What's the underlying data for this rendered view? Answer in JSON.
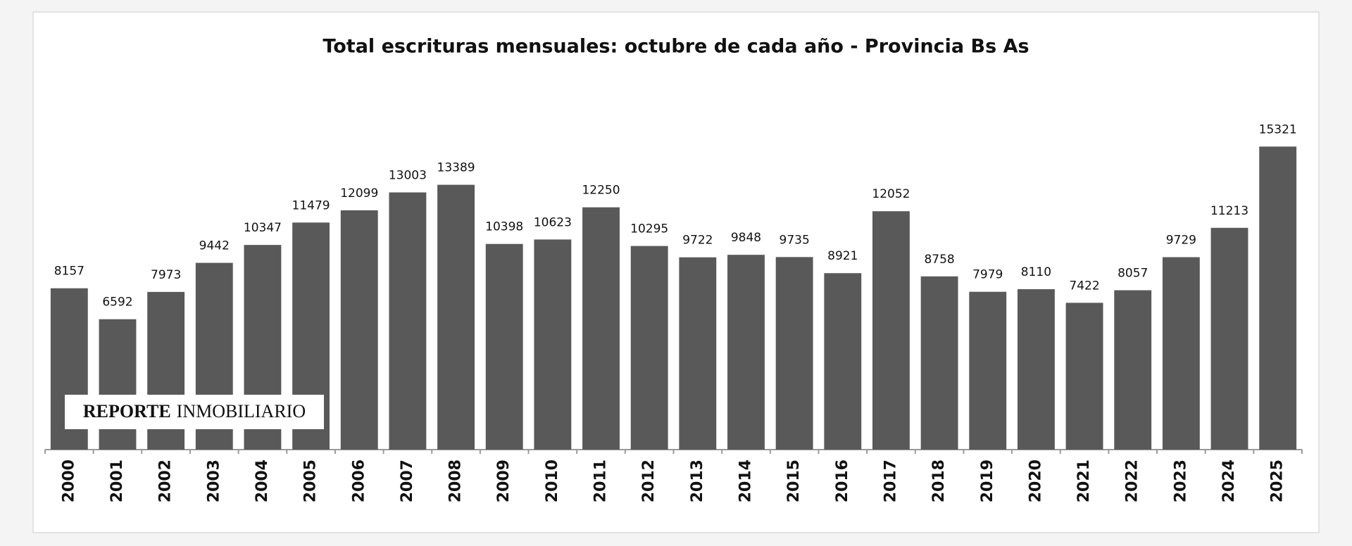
{
  "chart_data": {
    "type": "bar",
    "title": "Total escrituras mensuales: octubre de cada año - Provincia Bs As",
    "annotations": [
      "REPORTE",
      "INMOBILIARIO"
    ],
    "categories": [
      "2000",
      "2001",
      "2002",
      "2003",
      "2004",
      "2005",
      "2006",
      "2007",
      "2008",
      "2009",
      "2010",
      "2011",
      "2012",
      "2013",
      "2014",
      "2015",
      "2016",
      "2017",
      "2018",
      "2019",
      "2020",
      "2021",
      "2022",
      "2023",
      "2024",
      "2025"
    ],
    "values": [
      8157,
      6592,
      7973,
      9442,
      10347,
      11479,
      12099,
      13003,
      13389,
      10398,
      10623,
      12250,
      10295,
      9722,
      9848,
      9735,
      8921,
      12052,
      8758,
      7979,
      8110,
      7422,
      8057,
      9729,
      11213,
      15321
    ],
    "color": "#595959",
    "ylim": [
      0,
      18000
    ],
    "grid": false
  }
}
